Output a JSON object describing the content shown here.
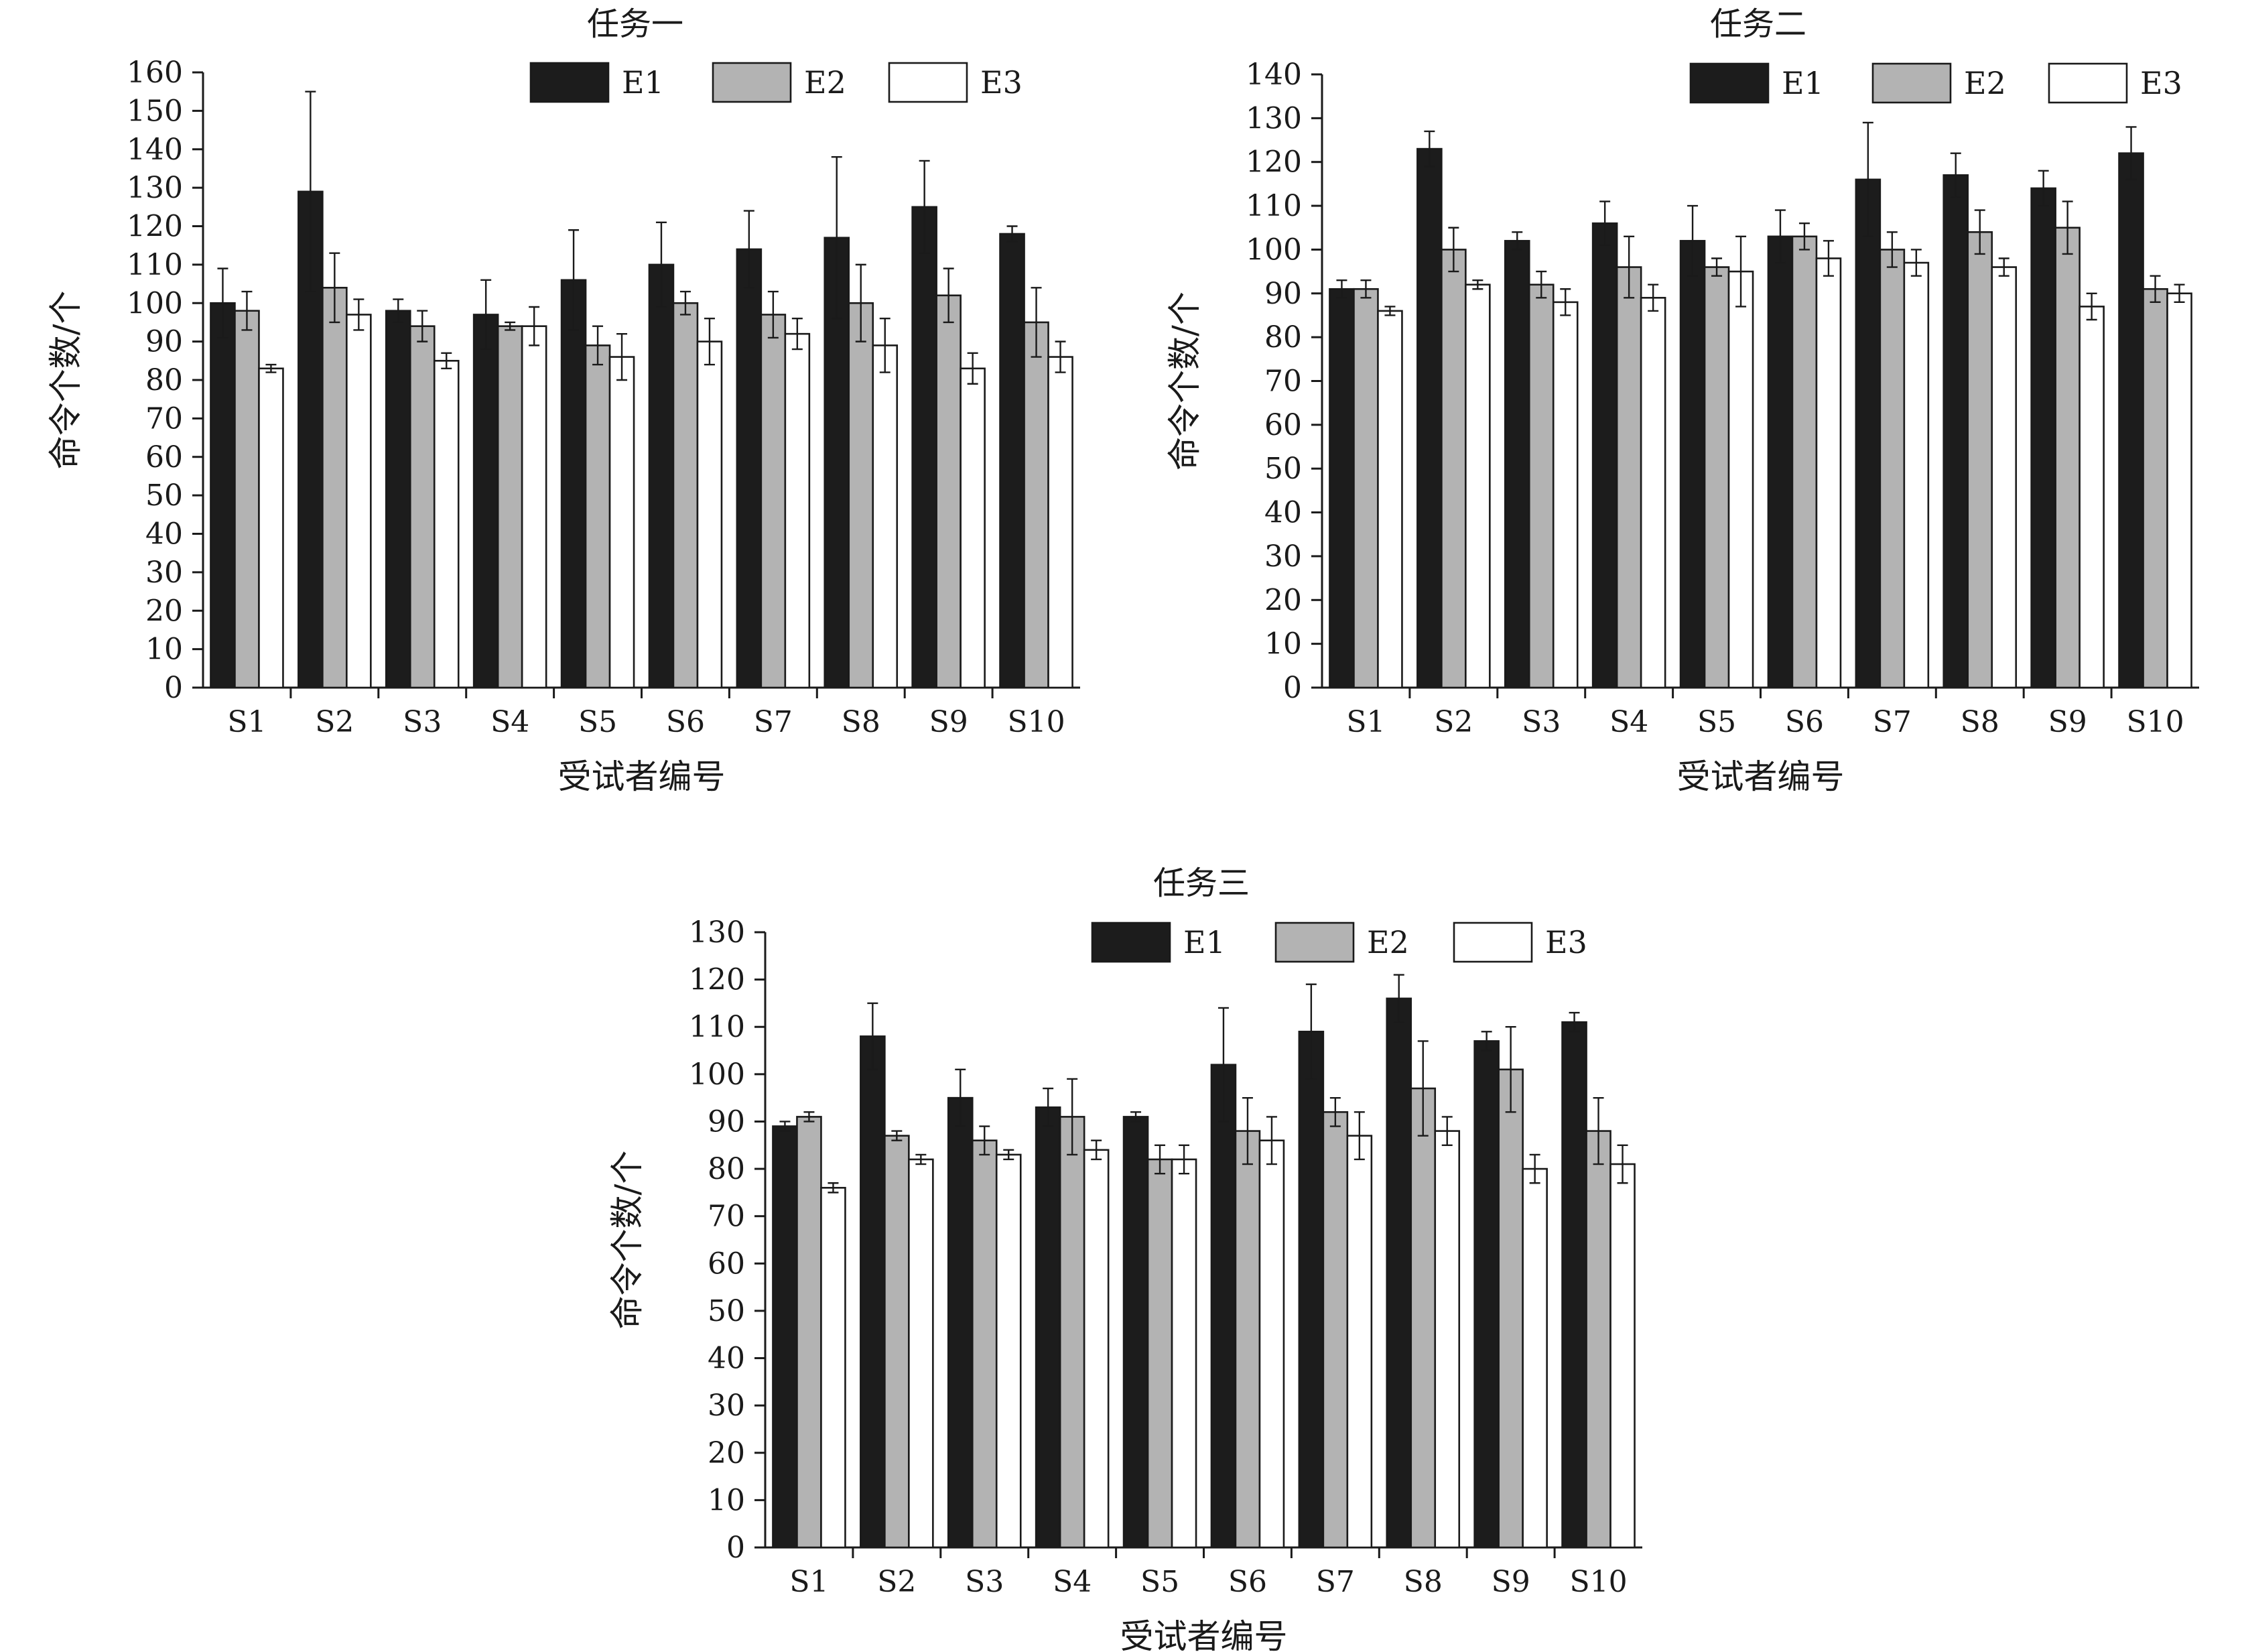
{
  "figure": {
    "y_axis_label": "命令个数/个",
    "x_axis_label": "受试者编号"
  },
  "series_colors": {
    "E1": "#1c1c1c",
    "E2": "#b3b3b3",
    "E3": "#ffffff"
  },
  "chart_data": [
    {
      "type": "bar",
      "title": "任务一",
      "xlabel": "受试者编号",
      "ylabel": "命令个数/个",
      "ylim": [
        0,
        160
      ],
      "yticks": [
        0,
        10,
        20,
        30,
        40,
        50,
        60,
        70,
        80,
        90,
        100,
        110,
        120,
        130,
        140,
        150,
        160
      ],
      "categories": [
        "S1",
        "S2",
        "S3",
        "S4",
        "S5",
        "S6",
        "S7",
        "S8",
        "S9",
        "S10"
      ],
      "legend_position": "top-right",
      "grid": false,
      "series": [
        {
          "name": "E1",
          "values": [
            100,
            129,
            98,
            97,
            106,
            110,
            114,
            117,
            125,
            118
          ],
          "errors": [
            9,
            26,
            3,
            9,
            13,
            11,
            10,
            21,
            12,
            2
          ]
        },
        {
          "name": "E2",
          "values": [
            98,
            104,
            94,
            94,
            89,
            100,
            97,
            100,
            102,
            95
          ],
          "errors": [
            5,
            9,
            4,
            1,
            5,
            3,
            6,
            10,
            7,
            9
          ]
        },
        {
          "name": "E3",
          "values": [
            83,
            97,
            85,
            94,
            86,
            90,
            92,
            89,
            83,
            86
          ],
          "errors": [
            1,
            4,
            2,
            5,
            6,
            6,
            4,
            7,
            4,
            4
          ]
        }
      ]
    },
    {
      "type": "bar",
      "title": "任务二",
      "xlabel": "受试者编号",
      "ylabel": "命令个数/个",
      "ylim": [
        0,
        140
      ],
      "yticks": [
        0,
        10,
        20,
        30,
        40,
        50,
        60,
        70,
        80,
        90,
        100,
        110,
        120,
        130,
        140
      ],
      "categories": [
        "S1",
        "S2",
        "S3",
        "S4",
        "S5",
        "S6",
        "S7",
        "S8",
        "S9",
        "S10"
      ],
      "legend_position": "top-right",
      "grid": false,
      "series": [
        {
          "name": "E1",
          "values": [
            91,
            123,
            102,
            106,
            102,
            103,
            116,
            117,
            114,
            122
          ],
          "errors": [
            2,
            4,
            2,
            5,
            8,
            6,
            13,
            5,
            4,
            6
          ]
        },
        {
          "name": "E2",
          "values": [
            91,
            100,
            92,
            96,
            96,
            103,
            100,
            104,
            105,
            91
          ],
          "errors": [
            2,
            5,
            3,
            7,
            2,
            3,
            4,
            5,
            6,
            3
          ]
        },
        {
          "name": "E3",
          "values": [
            86,
            92,
            88,
            89,
            95,
            98,
            97,
            96,
            87,
            90
          ],
          "errors": [
            1,
            1,
            3,
            3,
            8,
            4,
            3,
            2,
            3,
            2
          ]
        }
      ]
    },
    {
      "type": "bar",
      "title": "任务三",
      "xlabel": "受试者编号",
      "ylabel": "命令个数/个",
      "ylim": [
        0,
        130
      ],
      "yticks": [
        0,
        10,
        20,
        30,
        40,
        50,
        60,
        70,
        80,
        90,
        100,
        110,
        120,
        130
      ],
      "categories": [
        "S1",
        "S2",
        "S3",
        "S4",
        "S5",
        "S6",
        "S7",
        "S8",
        "S9",
        "S10"
      ],
      "legend_position": "top-right",
      "grid": false,
      "series": [
        {
          "name": "E1",
          "values": [
            89,
            108,
            95,
            93,
            91,
            102,
            109,
            116,
            107,
            111
          ],
          "errors": [
            1,
            7,
            6,
            4,
            1,
            12,
            10,
            5,
            2,
            2
          ]
        },
        {
          "name": "E2",
          "values": [
            91,
            87,
            86,
            91,
            82,
            88,
            92,
            97,
            101,
            88
          ],
          "errors": [
            1,
            1,
            3,
            8,
            3,
            7,
            3,
            10,
            9,
            7
          ]
        },
        {
          "name": "E3",
          "values": [
            76,
            82,
            83,
            84,
            82,
            86,
            87,
            88,
            80,
            81
          ],
          "errors": [
            1,
            1,
            1,
            2,
            3,
            5,
            5,
            3,
            3,
            4
          ]
        }
      ]
    }
  ]
}
